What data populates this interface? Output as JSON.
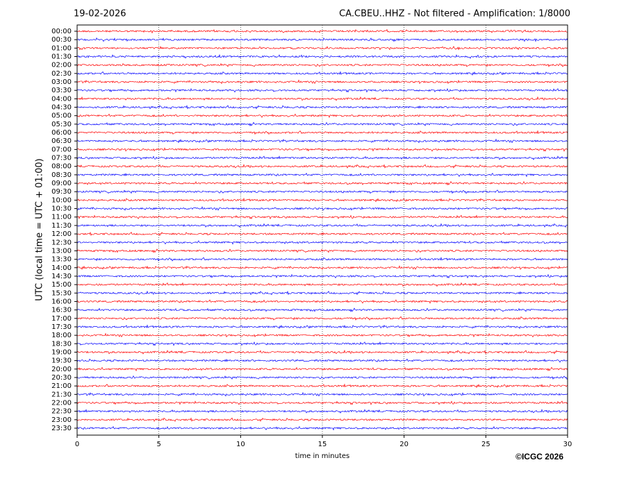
{
  "chart_data": {
    "type": "helicorder",
    "title": "CA.CBEU..HHZ - Not filtered - Amplification: 1/8000",
    "date": "19-02-2026",
    "ylabel": "UTC (local time = UTC + 01:00)",
    "xlabel": "time in minutes",
    "copyright": "©ICGC 2026",
    "categories": [
      "00:00",
      "00:30",
      "01:00",
      "01:30",
      "02:00",
      "02:30",
      "03:00",
      "03:30",
      "04:00",
      "04:30",
      "05:00",
      "05:30",
      "06:00",
      "06:30",
      "07:00",
      "07:30",
      "08:00",
      "08:30",
      "09:00",
      "09:30",
      "10:00",
      "10:30",
      "11:00",
      "11:30",
      "12:00",
      "12:30",
      "13:00",
      "13:30",
      "14:00",
      "14:30",
      "15:00",
      "15:30",
      "16:00",
      "16:30",
      "17:00",
      "17:30",
      "18:00",
      "18:30",
      "19:00",
      "19:30",
      "20:00",
      "20:30",
      "21:00",
      "21:30",
      "22:00",
      "22:30",
      "23:00",
      "23:30"
    ],
    "colors": [
      "#ff0000",
      "#0000ff"
    ],
    "xlim": [
      0,
      30
    ],
    "xticks": [
      0,
      5,
      10,
      15,
      20,
      25,
      30
    ],
    "grid": true
  }
}
